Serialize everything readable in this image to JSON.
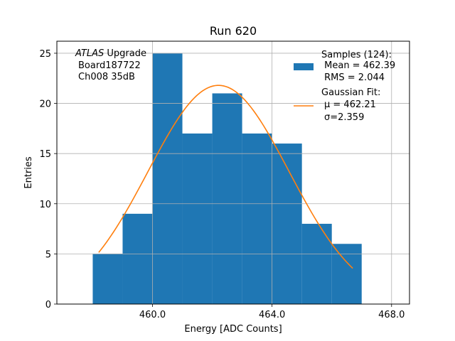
{
  "chart_data": {
    "type": "bar",
    "title": "Run 620",
    "xlabel": "Energy [ADC Counts]",
    "ylabel": "Entries",
    "xlim": [
      456.8,
      468.6
    ],
    "ylim": [
      0,
      26.2
    ],
    "grid": true,
    "legend_position": "top-right",
    "x_ticks": [
      460,
      464,
      468
    ],
    "x_tick_labels": [
      "460.0",
      "464.0",
      "468.0"
    ],
    "y_ticks": [
      0,
      5,
      10,
      15,
      20,
      25
    ],
    "y_tick_labels": [
      "0",
      "5",
      "10",
      "15",
      "20",
      "25"
    ],
    "histogram": {
      "name": "Samples",
      "color": "#1f77b4",
      "bin_edges": [
        458,
        459,
        460,
        461,
        462,
        463,
        464,
        465,
        466,
        467
      ],
      "counts": [
        5,
        9,
        25,
        17,
        21,
        17,
        16,
        8,
        6
      ]
    },
    "gaussian_fit": {
      "name": "Gaussian Fit",
      "color": "#ff7f0e",
      "mu": 462.21,
      "sigma": 2.359,
      "amplitude": 21.8,
      "x_range": [
        458.2,
        466.7
      ]
    },
    "legend": {
      "samples_lines": [
        "Samples (124):",
        " Mean = 462.39",
        " RMS = 2.044"
      ],
      "fit_lines": [
        "Gaussian Fit:",
        "μ = 462.21",
        "σ=2.359"
      ]
    },
    "annotation": {
      "atlas": "ATLAS",
      "upgrade": " Upgrade",
      "board": "Board187722",
      "channel": "Ch008 35dB"
    }
  }
}
